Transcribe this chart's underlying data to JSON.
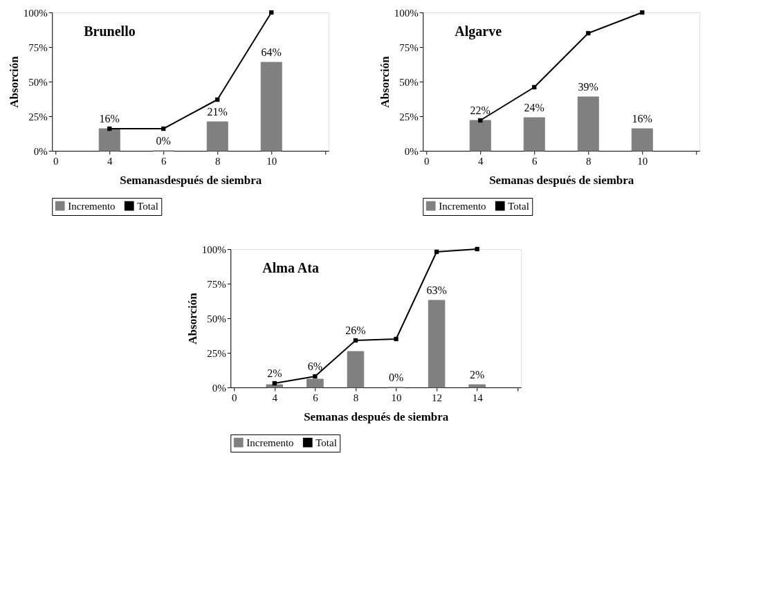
{
  "chart_data": [
    {
      "type": "bar",
      "title": "Brunello",
      "xlabel": "Semanasdespués de siembra",
      "ylabel": "Absorción",
      "categories": [
        "0",
        "4",
        "6",
        "8",
        "10",
        null
      ],
      "series": [
        {
          "name": "Incremento",
          "color": "#808080",
          "values": [
            null,
            16,
            0,
            21,
            64,
            null
          ],
          "value_labels": [
            null,
            "16%",
            "0%",
            "21%",
            "64%",
            null
          ]
        },
        {
          "name": "Total",
          "type": "line",
          "color": "#000000",
          "values": [
            null,
            16,
            16,
            37,
            100,
            null
          ]
        }
      ],
      "ylim": [
        0,
        100
      ],
      "yticks": [
        {
          "value": 0,
          "label": "0%"
        },
        {
          "value": 25,
          "label": "25%"
        },
        {
          "value": 50,
          "label": "50%"
        },
        {
          "value": 75,
          "label": "75%"
        },
        {
          "value": 100,
          "label": "100%"
        }
      ],
      "legend": "bottom",
      "marker": "square",
      "line_style": "solid",
      "grid": false
    },
    {
      "type": "bar",
      "title": "Algarve",
      "xlabel": "Semanas después de siembra",
      "ylabel": "Absorción",
      "categories": [
        "0",
        "4",
        "6",
        "8",
        "10",
        null
      ],
      "series": [
        {
          "name": "Incremento",
          "color": "#808080",
          "values": [
            null,
            22,
            24,
            39,
            16,
            null
          ],
          "value_labels": [
            null,
            "22%",
            "24%",
            "39%",
            "16%",
            null
          ]
        },
        {
          "name": "Total",
          "type": "line",
          "color": "#000000",
          "values": [
            null,
            22,
            46,
            85,
            100,
            null
          ]
        }
      ],
      "ylim": [
        0,
        100
      ],
      "yticks": [
        {
          "value": 0,
          "label": "0%"
        },
        {
          "value": 25,
          "label": "25%"
        },
        {
          "value": 50,
          "label": "50%"
        },
        {
          "value": 75,
          "label": "75%"
        },
        {
          "value": 100,
          "label": "100%"
        }
      ],
      "legend": "bottom",
      "marker": "square",
      "line_style": "solid",
      "grid": false
    },
    {
      "type": "bar",
      "title": "Alma Ata",
      "xlabel": "Semanas después de siembra",
      "ylabel": "Absorción",
      "categories": [
        "0",
        "4",
        "6",
        "8",
        "10",
        "12",
        "14",
        null
      ],
      "series": [
        {
          "name": "Incremento",
          "color": "#808080",
          "values": [
            null,
            2,
            6,
            26,
            0,
            63,
            2,
            null
          ],
          "value_labels": [
            null,
            "2%",
            "6%",
            "26%",
            "0%",
            "63%",
            "2%",
            null
          ]
        },
        {
          "name": "Total",
          "type": "line",
          "color": "#000000",
          "values": [
            null,
            3,
            8,
            34,
            35,
            98,
            100,
            null
          ]
        }
      ],
      "ylim": [
        0,
        100
      ],
      "yticks": [
        {
          "value": 0,
          "label": "0%"
        },
        {
          "value": 25,
          "label": "25%"
        },
        {
          "value": 50,
          "label": "50%"
        },
        {
          "value": 75,
          "label": "75%"
        },
        {
          "value": 100,
          "label": "100%"
        }
      ],
      "legend": "bottom",
      "marker": "square",
      "line_style": "solid",
      "grid": false
    }
  ]
}
